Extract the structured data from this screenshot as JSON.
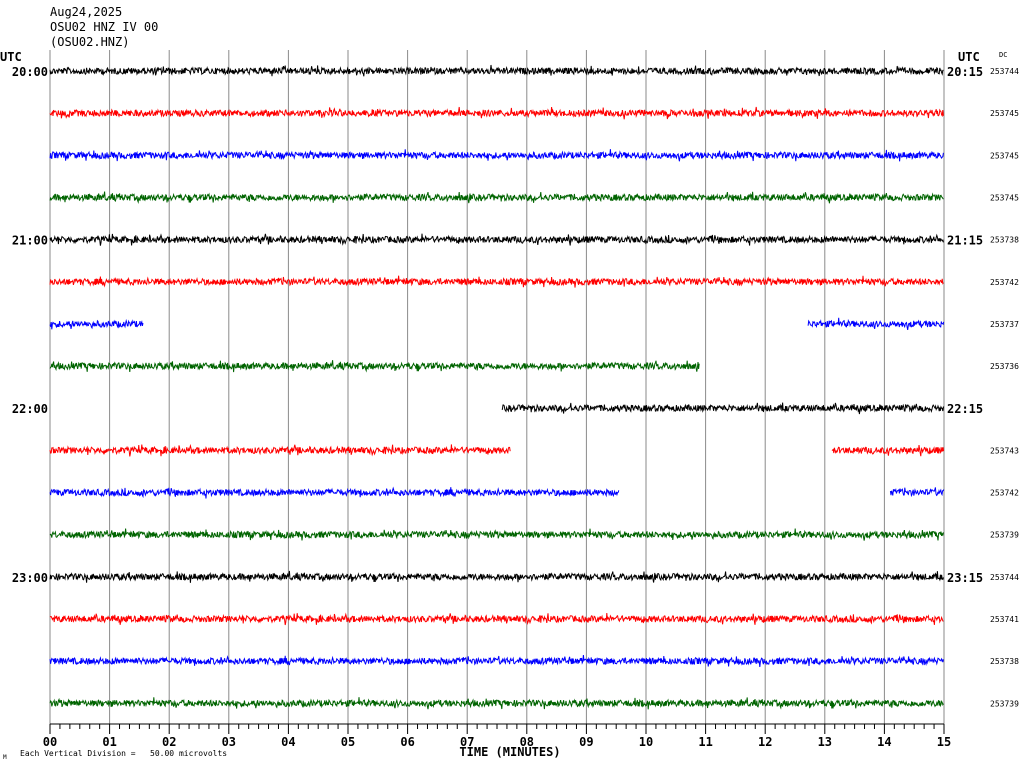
{
  "header": {
    "date": "Aug24,2025",
    "station_line": "OSU02 HNZ IV 00",
    "station_code": "(OSU02.HNZ)"
  },
  "left_utc_label": "UTC",
  "right_utc_label": "UTC",
  "dc_label": "DC",
  "xaxis_label": "TIME (MINUTES)",
  "scale_note": "Each Vertical Division =   50.00 microvolts",
  "corner_mark": "M",
  "colors": [
    "#000000",
    "#ff0000",
    "#0000ff",
    "#006400"
  ],
  "chart_data": {
    "type": "line",
    "title": "Aug24,2025",
    "xlabel": "TIME (MINUTES)",
    "ylabel": "",
    "xlim": [
      0,
      15
    ],
    "x_ticks": [
      "00",
      "01",
      "02",
      "03",
      "04",
      "05",
      "06",
      "07",
      "08",
      "09",
      "10",
      "11",
      "12",
      "13",
      "14",
      "15"
    ],
    "grid": true,
    "rows": [
      {
        "left": "20:00",
        "right": "20:15",
        "dc": "253744",
        "segments": [
          [
            0,
            15
          ]
        ]
      },
      {
        "left": "",
        "right": "",
        "dc": "253745",
        "segments": [
          [
            0,
            15
          ]
        ]
      },
      {
        "left": "",
        "right": "",
        "dc": "253745",
        "segments": [
          [
            0,
            15
          ]
        ]
      },
      {
        "left": "",
        "right": "",
        "dc": "253745",
        "segments": [
          [
            0,
            15
          ]
        ]
      },
      {
        "left": "21:00",
        "right": "21:15",
        "dc": "253738",
        "segments": [
          [
            0,
            15
          ]
        ]
      },
      {
        "left": "",
        "right": "",
        "dc": "253742",
        "segments": [
          [
            0,
            15
          ]
        ]
      },
      {
        "left": "",
        "right": "",
        "dc": "253737",
        "segments": [
          [
            0,
            1.57
          ],
          [
            12.72,
            15
          ]
        ]
      },
      {
        "left": "",
        "right": "",
        "dc": "253736",
        "segments": [
          [
            0,
            10.9
          ]
        ]
      },
      {
        "left": "22:00",
        "right": "22:15",
        "dc": "",
        "segments": [
          [
            7.58,
            15
          ]
        ]
      },
      {
        "left": "",
        "right": "",
        "dc": "253743",
        "segments": [
          [
            0,
            7.73
          ],
          [
            13.12,
            15
          ]
        ]
      },
      {
        "left": "",
        "right": "",
        "dc": "253742",
        "segments": [
          [
            0,
            9.55
          ],
          [
            14.1,
            15
          ]
        ]
      },
      {
        "left": "",
        "right": "",
        "dc": "253739",
        "segments": [
          [
            0,
            15
          ]
        ]
      },
      {
        "left": "23:00",
        "right": "23:15",
        "dc": "253744",
        "segments": [
          [
            0,
            15
          ]
        ]
      },
      {
        "left": "",
        "right": "",
        "dc": "253741",
        "segments": [
          [
            0,
            15
          ]
        ]
      },
      {
        "left": "",
        "right": "",
        "dc": "253738",
        "segments": [
          [
            0,
            15
          ]
        ]
      },
      {
        "left": "",
        "right": "",
        "dc": "253739",
        "segments": [
          [
            0,
            15
          ]
        ]
      }
    ]
  }
}
